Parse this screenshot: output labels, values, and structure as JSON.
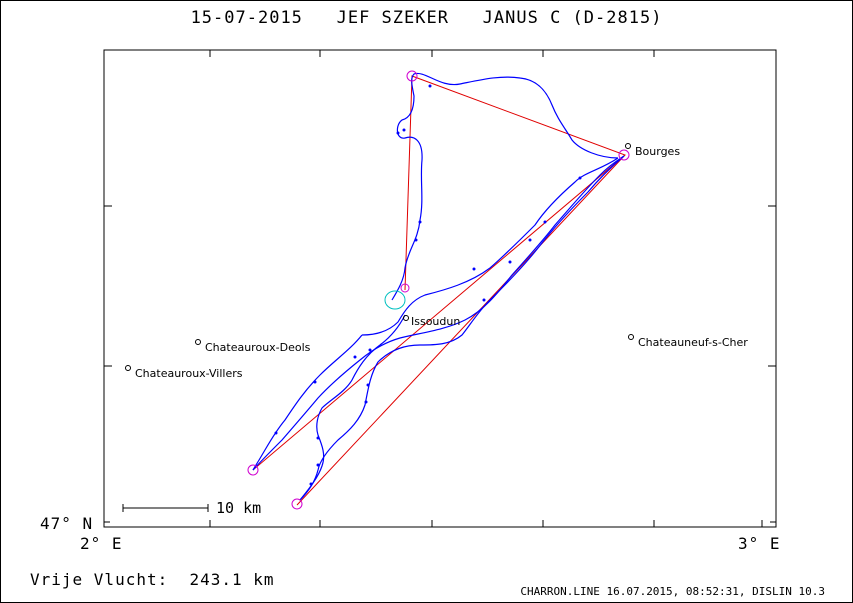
{
  "title": "15-07-2015   JEF SZEKER   JANUS C (D-2815)",
  "axis": {
    "lat_label": "47° N",
    "lon_left_label": "2° E",
    "lon_right_label": "3° E"
  },
  "scale_bar": {
    "label": "10 km"
  },
  "places": [
    {
      "name": "Bourges"
    },
    {
      "name": "Chateauroux-Deols"
    },
    {
      "name": "Chateauroux-Villers"
    },
    {
      "name": "Issoudun"
    },
    {
      "name": "Chateauneuf-s-Cher"
    }
  ],
  "flight": {
    "label": "Vrije Vlucht:",
    "distance": "243.1 km"
  },
  "footer": "CHARRON.LINE 16.07.2015, 08:52:31, DISLIN 10.3",
  "colors": {
    "track": "#0000ff",
    "task": "#e00000",
    "turnpoint": "#d000d0",
    "start": "#00c0c0"
  }
}
